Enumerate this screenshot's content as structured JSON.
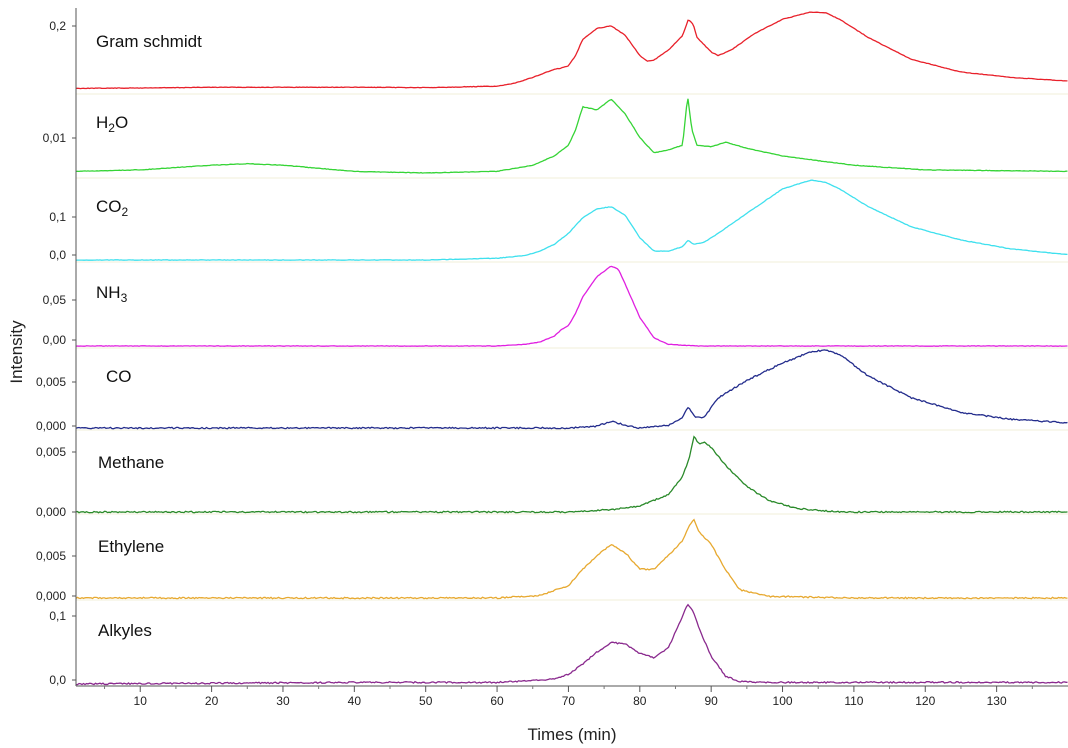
{
  "chart_data": {
    "type": "line",
    "title": "",
    "xlabel": "Times (min)",
    "ylabel": "Intensity",
    "xlim": [
      1,
      140
    ],
    "x_ticks": [
      "10",
      "20",
      "30",
      "40",
      "50",
      "60",
      "70",
      "80",
      "90",
      "100",
      "110",
      "120",
      "130"
    ],
    "grid": false,
    "legend": "none",
    "panels": [
      {
        "name": "Gram schmidt",
        "name_main": "Gram schmidt",
        "name_sub": "",
        "name_tail": "",
        "color": "#e8202a",
        "y_ticks": [
          "0,2"
        ],
        "x": [
          1,
          10,
          20,
          40,
          50,
          60,
          62,
          65,
          67,
          68,
          69,
          70,
          71,
          72,
          74,
          76,
          78,
          80,
          81,
          82,
          84,
          86,
          86.8,
          87.5,
          88,
          90,
          91,
          93,
          96,
          100,
          104,
          106,
          108,
          112,
          118,
          125,
          132,
          140
        ],
        "y": [
          0.01,
          0.011,
          0.013,
          0.013,
          0.012,
          0.016,
          0.022,
          0.04,
          0.055,
          0.062,
          0.066,
          0.072,
          0.1,
          0.145,
          0.175,
          0.182,
          0.155,
          0.1,
          0.085,
          0.088,
          0.115,
          0.155,
          0.2,
          0.185,
          0.15,
          0.11,
          0.1,
          0.118,
          0.16,
          0.2,
          0.22,
          0.218,
          0.2,
          0.15,
          0.09,
          0.055,
          0.04,
          0.03
        ]
      },
      {
        "name": "H2O",
        "name_main": "H",
        "name_sub": "2",
        "name_tail": "O",
        "color": "#36d436",
        "y_ticks": [
          "0,01"
        ],
        "x": [
          1,
          10,
          20,
          25,
          30,
          40,
          50,
          60,
          65,
          68,
          70,
          71,
          72,
          74,
          76,
          78,
          80,
          82,
          84,
          86,
          86.7,
          87.3,
          88,
          90,
          92,
          95,
          100,
          110,
          120,
          140
        ],
        "y": [
          0.003,
          0.004,
          0.007,
          0.008,
          0.007,
          0.003,
          0.002,
          0.003,
          0.007,
          0.013,
          0.02,
          0.03,
          0.045,
          0.043,
          0.05,
          0.04,
          0.025,
          0.015,
          0.017,
          0.02,
          0.052,
          0.03,
          0.02,
          0.019,
          0.022,
          0.018,
          0.013,
          0.007,
          0.004,
          0.003
        ]
      },
      {
        "name": "CO2",
        "name_main": "CO",
        "name_sub": "2",
        "name_tail": "",
        "color": "#3fe0ee",
        "y_ticks": [
          "0,1",
          "0,0"
        ],
        "x": [
          1,
          20,
          40,
          50,
          60,
          64,
          66,
          68,
          70,
          72,
          74,
          76,
          78,
          80,
          82,
          84,
          86,
          86.8,
          87.5,
          89,
          91,
          95,
          100,
          104,
          106,
          108,
          112,
          118,
          125,
          132,
          140
        ],
        "y": [
          0.0,
          0.0,
          0.0,
          0.0,
          0.004,
          0.01,
          0.02,
          0.035,
          0.06,
          0.095,
          0.115,
          0.12,
          0.1,
          0.05,
          0.02,
          0.02,
          0.03,
          0.045,
          0.035,
          0.04,
          0.06,
          0.105,
          0.16,
          0.18,
          0.175,
          0.16,
          0.12,
          0.075,
          0.045,
          0.025,
          0.012
        ]
      },
      {
        "name": "NH3",
        "name_main": "NH",
        "name_sub": "3",
        "name_tail": "",
        "color": "#e020e0",
        "y_ticks": [
          "0,05",
          "0,00"
        ],
        "x": [
          1,
          40,
          60,
          64,
          66,
          68,
          69,
          70,
          71,
          72,
          74,
          76,
          77,
          78,
          80,
          82,
          84,
          88,
          100,
          140
        ],
        "y": [
          0.0,
          0.0,
          0.0,
          0.002,
          0.005,
          0.012,
          0.02,
          0.025,
          0.04,
          0.06,
          0.085,
          0.098,
          0.094,
          0.075,
          0.035,
          0.01,
          0.002,
          0.0,
          0.0,
          0.0
        ]
      },
      {
        "name": "CO",
        "name_main": "CO",
        "name_sub": "",
        "name_tail": "",
        "color": "#232c8c",
        "y_ticks": [
          "0,005",
          "0,000"
        ],
        "x": [
          1,
          60,
          70,
          74,
          76,
          78,
          80,
          84,
          86,
          86.8,
          87.8,
          89,
          91,
          95,
          100,
          104,
          106,
          108,
          112,
          118,
          125,
          132,
          140
        ],
        "y": [
          0.0,
          0.0,
          0.0,
          0.0002,
          0.0008,
          0.0003,
          0.0,
          0.0003,
          0.0012,
          0.0025,
          0.0012,
          0.0012,
          0.0035,
          0.0055,
          0.0075,
          0.0088,
          0.009,
          0.0085,
          0.006,
          0.0035,
          0.0018,
          0.001,
          0.0006
        ]
      },
      {
        "name": "Methane",
        "name_main": "Methane",
        "name_sub": "",
        "name_tail": "",
        "color": "#2a8a2a",
        "y_ticks": [
          "0,005",
          "0,000"
        ],
        "x": [
          1,
          60,
          70,
          76,
          80,
          84,
          86,
          87,
          87.6,
          88.3,
          89,
          90,
          92,
          95,
          98,
          102,
          108,
          120,
          140
        ],
        "y": [
          0.0,
          0.0,
          0.0,
          0.0002,
          0.0005,
          0.0015,
          0.003,
          0.0048,
          0.0065,
          0.0058,
          0.006,
          0.0055,
          0.004,
          0.0022,
          0.001,
          0.0003,
          0.0,
          0.0,
          0.0
        ]
      },
      {
        "name": "Ethylene",
        "name_main": "Ethylene",
        "name_sub": "",
        "name_tail": "",
        "color": "#e7a930",
        "y_ticks": [
          "0,005",
          "0,000"
        ],
        "x": [
          1,
          60,
          66,
          70,
          72,
          74,
          76,
          78,
          80,
          82,
          84,
          86,
          87,
          87.6,
          88.2,
          90,
          92,
          94,
          98,
          110,
          140
        ],
        "y": [
          0.0,
          0.0,
          0.0003,
          0.0015,
          0.0035,
          0.0052,
          0.0065,
          0.0055,
          0.0035,
          0.0035,
          0.0052,
          0.007,
          0.009,
          0.0095,
          0.0082,
          0.0065,
          0.0035,
          0.001,
          0.0002,
          0.0,
          0.0
        ]
      },
      {
        "name": "Alkyles",
        "name_main": "Alkyles",
        "name_sub": "",
        "name_tail": "",
        "color": "#8a2a8e",
        "y_ticks": [
          "0,1",
          "0,0"
        ],
        "x": [
          1,
          40,
          60,
          68,
          70,
          72,
          74,
          76,
          78,
          80,
          82,
          84,
          85.5,
          86.7,
          87.5,
          88.5,
          90,
          92,
          94,
          98,
          110,
          140
        ],
        "y": [
          0.0,
          0.002,
          0.002,
          0.006,
          0.012,
          0.025,
          0.04,
          0.052,
          0.05,
          0.038,
          0.033,
          0.045,
          0.075,
          0.1,
          0.09,
          0.065,
          0.035,
          0.01,
          0.003,
          0.002,
          0.002,
          0.002
        ]
      }
    ]
  }
}
